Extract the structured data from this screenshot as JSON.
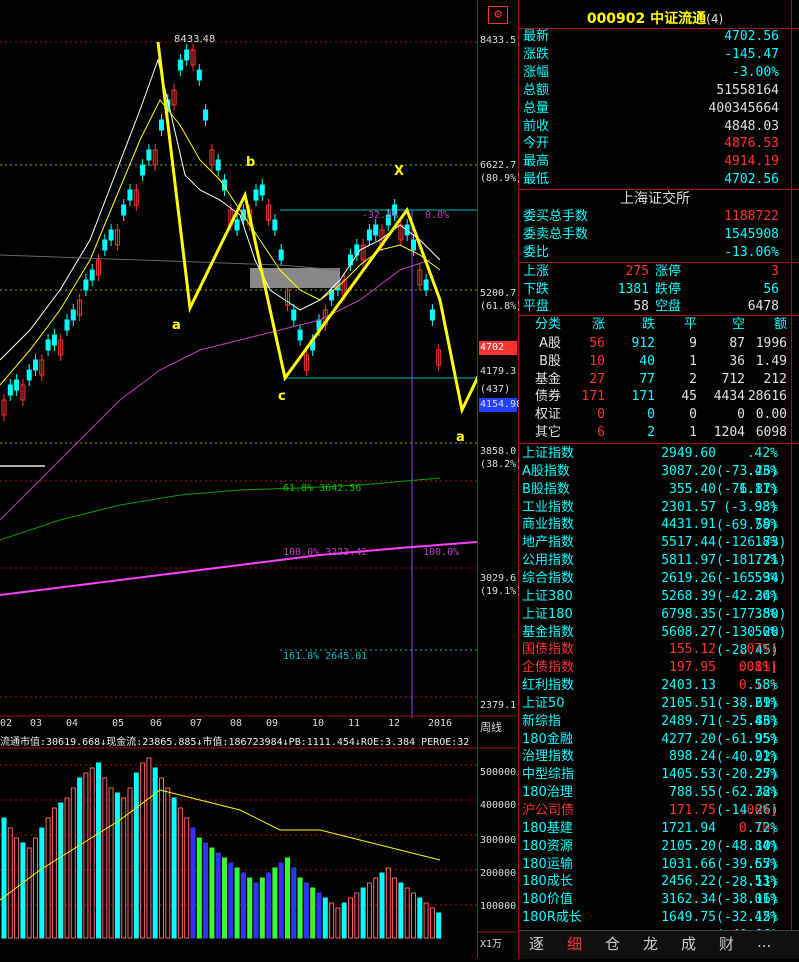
{
  "header": {
    "code": "000902",
    "name": "中证流通",
    "badge": "(4)"
  },
  "quote": [
    {
      "label": "最新",
      "value": "4702.56",
      "cls": "dn"
    },
    {
      "label": "涨跌",
      "value": "-145.47",
      "cls": "dn"
    },
    {
      "label": "涨幅",
      "value": "-3.00%",
      "cls": "dn"
    },
    {
      "label": "总额",
      "value": "51558164",
      "cls": "wh"
    },
    {
      "label": "总量",
      "value": "400345664",
      "cls": "wh"
    },
    {
      "label": "前收",
      "value": "4848.03",
      "cls": "wh"
    },
    {
      "label": "今开",
      "value": "4876.53",
      "cls": "up"
    },
    {
      "label": "最高",
      "value": "4914.19",
      "cls": "up"
    },
    {
      "label": "最低",
      "value": "4702.56",
      "cls": "dn"
    }
  ],
  "exchange_title": "上海证交所",
  "commission": [
    {
      "label": "委买总手数",
      "value": "1188722",
      "cls": "up"
    },
    {
      "label": "委卖总手数",
      "value": "1545908",
      "cls": "dn"
    },
    {
      "label": "委比",
      "value": "-13.06%",
      "cls": "dn"
    }
  ],
  "breadth": [
    {
      "l1": "上涨",
      "v1": "275",
      "c1": "up",
      "l2": "涨停",
      "v2": "3",
      "c2": "up"
    },
    {
      "l1": "下跌",
      "v1": "1381",
      "c1": "dn",
      "l2": "跌停",
      "v2": "56",
      "c2": "dn"
    },
    {
      "l1": "平盘",
      "v1": "58",
      "c1": "wh",
      "l2": "空盘",
      "v2": "6478",
      "c2": "wh"
    }
  ],
  "category_header": [
    "分类",
    "涨",
    "跌",
    "平",
    "空",
    "额"
  ],
  "categories": [
    {
      "name": "A股",
      "up": "56",
      "down": "912",
      "flat": "9",
      "empty": "87",
      "amount": "1996"
    },
    {
      "name": "B股",
      "up": "10",
      "down": "40",
      "flat": "1",
      "empty": "36",
      "amount": "1.49"
    },
    {
      "name": "基金",
      "up": "27",
      "down": "77",
      "flat": "2",
      "empty": "712",
      "amount": "212"
    },
    {
      "name": "债券",
      "up": "171",
      "down": "171",
      "flat": "45",
      "empty": "4434",
      "amount": "28616"
    },
    {
      "name": "权证",
      "up": "0",
      "down": "0",
      "flat": "0",
      "empty": "0",
      "amount": "0.00"
    },
    {
      "name": "其它",
      "up": "6",
      "down": "2",
      "flat": "1",
      "empty": "1204",
      "amount": "6098"
    }
  ],
  "indices": [
    {
      "name": "上证指数",
      "price": "2949.60",
      "chg": ".42%(-73.26)",
      "red": false
    },
    {
      "name": "A股指数",
      "price": "3087.20",
      "chg": ".43%(-76.87)",
      "red": false
    },
    {
      "name": "B股指数",
      "price": "355.40",
      "chg": "1.11%(-3.98)",
      "red": false
    },
    {
      "name": "工业指数",
      "price": "2301.57",
      "chg": ".93%(-69.59)",
      "red": false
    },
    {
      "name": "商业指数",
      "price": "4431.91",
      "chg": "78%(-126.73)",
      "red": false
    },
    {
      "name": "地产指数",
      "price": "5517.44",
      "chg": "18%(-181.21)",
      "red": false
    },
    {
      "name": "公用指数",
      "price": "5811.97",
      "chg": "77%(-165.34)",
      "red": false
    },
    {
      "name": "综合指数",
      "price": "2619.26",
      "chg": ".59%(-42.34)",
      "red": false
    },
    {
      "name": "上证380",
      "price": "5268.39",
      "chg": "26%(-177.50)",
      "red": false
    },
    {
      "name": "上证180",
      "price": "6798.35",
      "chg": "38%(-130.20)",
      "red": false
    },
    {
      "name": "基金指数",
      "price": "5608.27",
      "chg": ".50%(-28.45)",
      "red": false
    },
    {
      "name": "国债指数",
      "price": "155.12",
      "chg": ".07%( 0.11)",
      "red": true
    },
    {
      "name": "企债指数",
      "price": "197.95",
      "chg": ".08%( 0.15)",
      "red": true
    },
    {
      "name": "红利指数",
      "price": "2403.13",
      "chg": ".58%(-38.69)",
      "red": false
    },
    {
      "name": "上证50",
      "price": "2105.51",
      "chg": ".21%(-25.86)",
      "red": false
    },
    {
      "name": "新综指",
      "price": "2489.71",
      "chg": ".43%(-61.95)",
      "red": false
    },
    {
      "name": "180金融",
      "price": "4277.20",
      "chg": ".95%(-40.92)",
      "red": false
    },
    {
      "name": "治理指数",
      "price": "898.24",
      "chg": ".21%(-20.27)",
      "red": false
    },
    {
      "name": "中型综指",
      "price": "1405.53",
      "chg": ".25%(-62.32)",
      "red": false
    },
    {
      "name": "180治理",
      "price": "788.55",
      "chg": ".78%(-14.26)",
      "red": false
    },
    {
      "name": "沪公司债",
      "price": "171.75",
      "chg": ".06%( 0.10)",
      "red": true
    },
    {
      "name": "180基建",
      "price": "1721.94",
      "chg": ".72%(-48.10)",
      "red": false
    },
    {
      "name": "180资源",
      "price": "2105.20",
      "chg": ".84%(-39.57)",
      "red": false
    },
    {
      "name": "180运输",
      "price": "1031.66",
      "chg": ".65%(-28.11)",
      "red": false
    },
    {
      "name": "180成长",
      "price": "2456.22",
      "chg": ".53%(-38.16)",
      "red": false
    },
    {
      "name": "180价值",
      "price": "3162.34",
      "chg": ".01%(-32.15)",
      "red": false
    },
    {
      "name": "180R成长",
      "price": "1649.75",
      "chg": ".42%(-40.96)",
      "red": false
    }
  ],
  "tabs": [
    "逐",
    "细",
    "仓",
    "龙",
    "成",
    "财",
    "..."
  ],
  "selected_tab": "细",
  "axis_top_icon": "settings-icon",
  "price_axis": [
    {
      "text": "8433.5",
      "cls": "wh"
    },
    {
      "text": "6622.7",
      "cls": "wh"
    },
    {
      "text": "(80.9%)",
      "cls": "wh"
    },
    {
      "text": "5200.7",
      "cls": "wh"
    },
    {
      "text": "(61.8%)",
      "cls": "wh"
    },
    {
      "text": "4179.3",
      "cls": "wh"
    },
    {
      "text": "4154.98",
      "cls": "wh"
    },
    {
      "text": "(437)",
      "cls": "wh"
    },
    {
      "text": "3858.0",
      "cls": "wh"
    },
    {
      "text": "(38.2%)",
      "cls": "wh"
    },
    {
      "text": "3029.6",
      "cls": "wh"
    },
    {
      "text": "(19.1%)",
      "cls": "wh"
    },
    {
      "text": "2379.1",
      "cls": "wh"
    }
  ],
  "price_marker": "4702",
  "x_axis": [
    "02",
    "03",
    "04",
    "05",
    "06",
    "07",
    "08",
    "09",
    "10",
    "11",
    "12",
    "2016"
  ],
  "period_label": "周线",
  "volume_axis": [
    "500000",
    "400000",
    "300000",
    "200000",
    "100000"
  ],
  "volume_unit": "X1万",
  "info_bar": "流通市值:30619.668↓现金流:23865.885↓市值:186723984↓PB:1111.454↓ROE:3.384 PEROE:32",
  "annotations": {
    "high_label": "8433.48",
    "b1": "b",
    "a1": "a",
    "c1": "c",
    "x": "X",
    "b2": "b",
    "a2": "a",
    "c2": "c",
    "pct_left": "-32.3%",
    "pct_right": "0.0%"
  },
  "fib_labels": [
    {
      "text": "61.8% 3642.56"
    },
    {
      "text": "100.0% 3223.42"
    },
    {
      "text": "100.0%"
    },
    {
      "text": "161.8% 2645.01"
    }
  ],
  "colors": {
    "up": "#ff3232",
    "down": "#00ffff",
    "ma_yellow": "#ffff00",
    "ma_purple": "#c040c0",
    "ma_green": "#00a000",
    "vol_blue": "#3232ff",
    "vol_green": "#32ff32"
  }
}
